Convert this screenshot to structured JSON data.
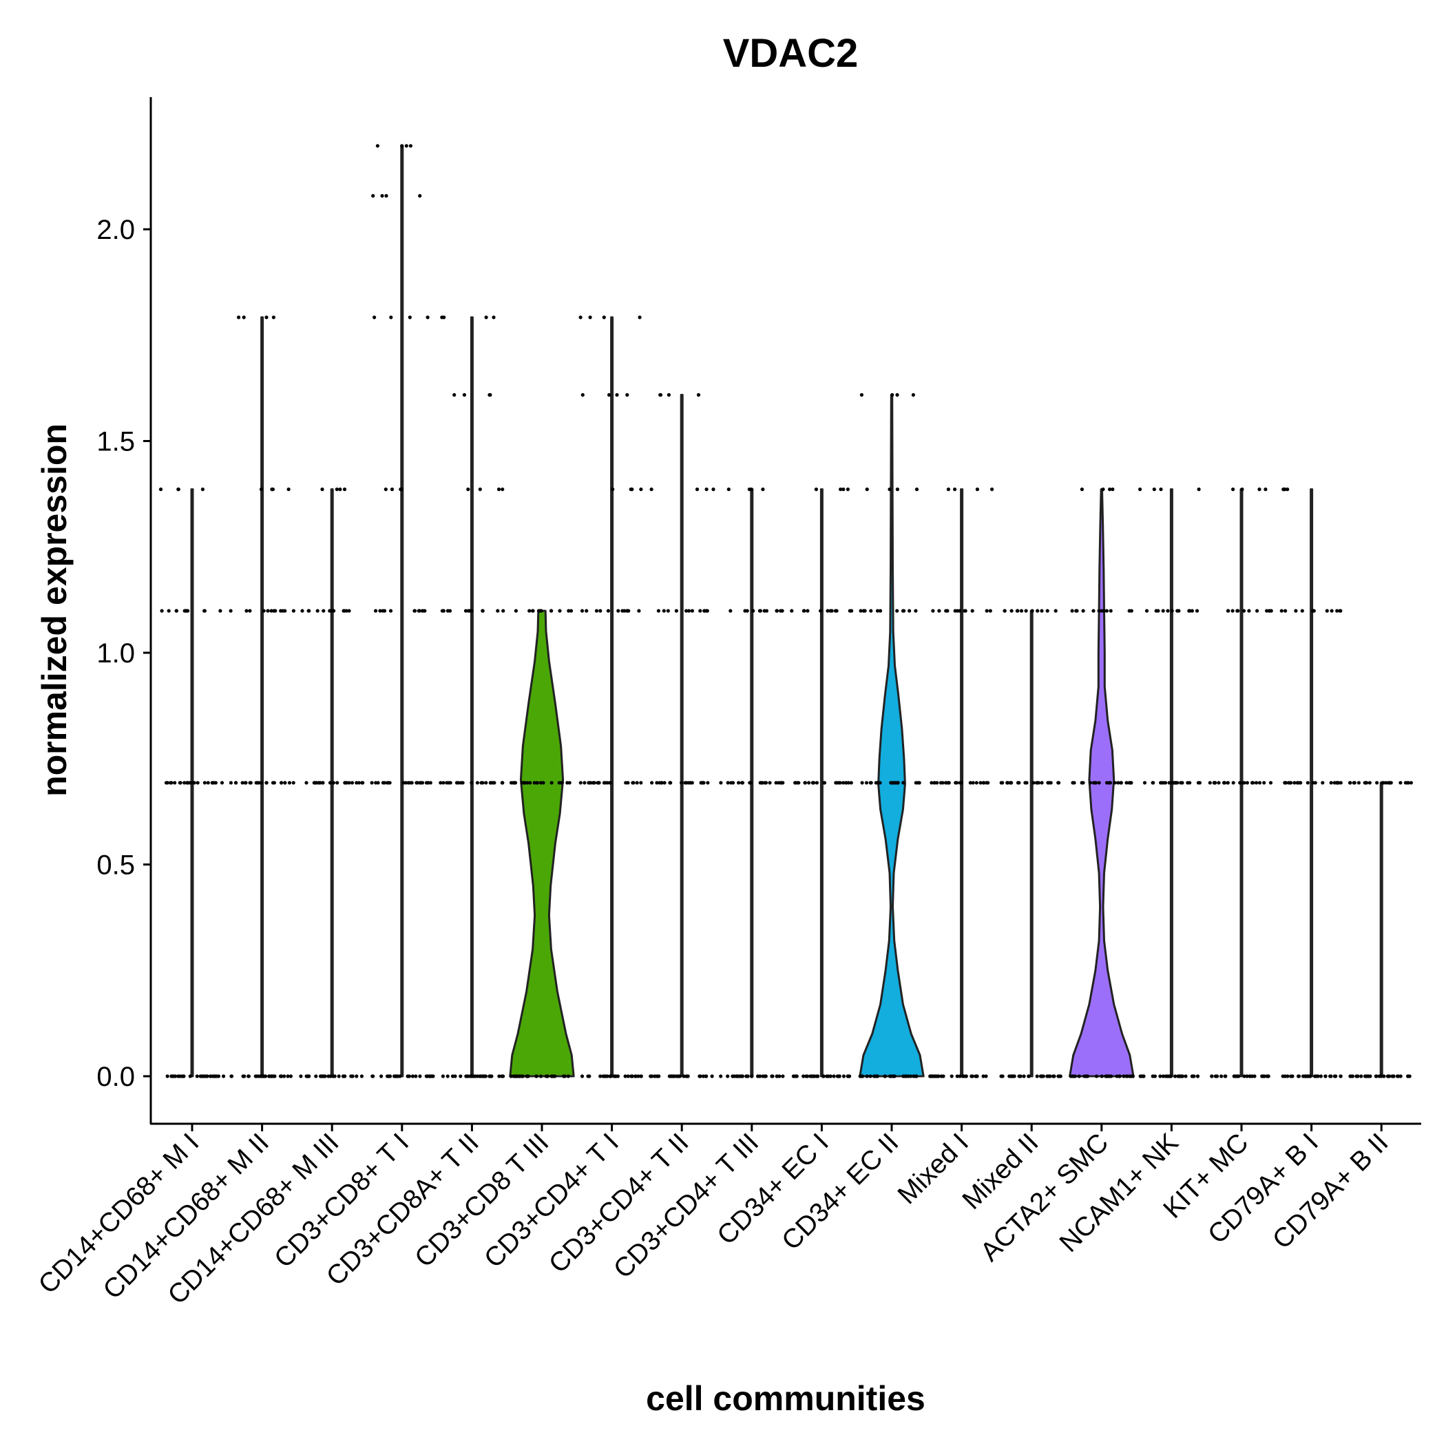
{
  "chart_data": {
    "type": "violin",
    "title": "VDAC2",
    "xlabel": "cell communities",
    "ylabel": "normalized expression",
    "ylim": [
      -0.11,
      2.32
    ],
    "yticks": [
      "0.0",
      "0.5",
      "1.0",
      "1.5",
      "2.0"
    ],
    "grid": false,
    "legend": "none",
    "categories": [
      "CD14+CD68+ M I",
      "CD14+CD68+ M II",
      "CD14+CD68+ M III",
      "CD3+CD8+ T I",
      "CD3+CD8A+ T II",
      "CD3+CD8 T III",
      "CD3+CD4+ T I",
      "CD3+CD4+ T II",
      "CD3+CD4+ T III",
      "CD34+ EC I",
      "CD34+ EC II",
      "Mixed I",
      "Mixed II",
      "ACTA2+ SMC",
      "NCAM1+ NK",
      "KIT+ MC",
      "CD79A+ B I",
      "CD79A+ B II"
    ],
    "series": [
      {
        "category": "CD14+CD68+ M I",
        "max": 1.386,
        "levels": [
          0.0,
          0.693,
          1.099,
          1.386
        ],
        "fill": "#F8766D"
      },
      {
        "category": "CD14+CD68+ M II",
        "max": 1.792,
        "levels": [
          0.0,
          0.693,
          1.099,
          1.386,
          1.792
        ],
        "fill": "#E7851E"
      },
      {
        "category": "CD14+CD68+ M III",
        "max": 1.386,
        "levels": [
          0.0,
          0.693,
          1.099,
          1.386
        ],
        "fill": "#D09400"
      },
      {
        "category": "CD3+CD8+ T I",
        "max": 2.197,
        "levels": [
          0.0,
          0.693,
          1.099,
          1.386,
          1.792,
          2.079,
          2.197
        ],
        "fill": "#B2A100"
      },
      {
        "category": "CD3+CD8A+ T II",
        "max": 1.792,
        "levels": [
          0.0,
          0.693,
          1.099,
          1.386,
          1.609,
          1.792
        ],
        "fill": "#89AC00"
      },
      {
        "category": "CD3+CD8 T III",
        "max": 1.099,
        "levels": [
          0.0,
          0.693,
          1.099
        ],
        "fill": "#4BA706",
        "density": [
          [
            0.0,
            0.62
          ],
          [
            0.05,
            0.58
          ],
          [
            0.1,
            0.47
          ],
          [
            0.2,
            0.3
          ],
          [
            0.3,
            0.18
          ],
          [
            0.38,
            0.14
          ],
          [
            0.45,
            0.17
          ],
          [
            0.55,
            0.26
          ],
          [
            0.62,
            0.35
          ],
          [
            0.7,
            0.41
          ],
          [
            0.78,
            0.37
          ],
          [
            0.88,
            0.26
          ],
          [
            0.98,
            0.14
          ],
          [
            1.05,
            0.08
          ],
          [
            1.099,
            0.07
          ]
        ]
      },
      {
        "category": "CD3+CD4+ T I",
        "max": 1.792,
        "levels": [
          0.0,
          0.693,
          1.099,
          1.386,
          1.609,
          1.792
        ],
        "fill": "#00C08B"
      },
      {
        "category": "CD3+CD4+ T II",
        "max": 1.609,
        "levels": [
          0.0,
          0.693,
          1.099,
          1.386,
          1.609
        ],
        "fill": "#00BFC4"
      },
      {
        "category": "CD3+CD4+ T III",
        "max": 1.386,
        "levels": [
          0.0,
          0.693,
          1.099,
          1.386
        ],
        "fill": "#00B4F0"
      },
      {
        "category": "CD34+ EC I",
        "max": 1.386,
        "levels": [
          0.0,
          0.693,
          1.099,
          1.386
        ],
        "fill": "#00A9FF"
      },
      {
        "category": "CD34+ EC II",
        "max": 1.609,
        "levels": [
          0.0,
          0.693,
          1.099,
          1.386,
          1.609
        ],
        "fill": "#13ADDE",
        "density": [
          [
            0.0,
            0.62
          ],
          [
            0.05,
            0.55
          ],
          [
            0.1,
            0.38
          ],
          [
            0.17,
            0.22
          ],
          [
            0.25,
            0.12
          ],
          [
            0.32,
            0.05
          ],
          [
            0.4,
            0.02
          ],
          [
            0.48,
            0.04
          ],
          [
            0.56,
            0.12
          ],
          [
            0.63,
            0.22
          ],
          [
            0.69,
            0.26
          ],
          [
            0.75,
            0.24
          ],
          [
            0.82,
            0.2
          ],
          [
            0.9,
            0.13
          ],
          [
            0.97,
            0.06
          ],
          [
            1.05,
            0.03
          ],
          [
            1.2,
            0.02
          ],
          [
            1.4,
            0.015
          ],
          [
            1.609,
            0.01
          ]
        ]
      },
      {
        "category": "Mixed I",
        "max": 1.386,
        "levels": [
          0.0,
          0.693,
          1.099,
          1.386
        ],
        "fill": "#C77CFF"
      },
      {
        "category": "Mixed II",
        "max": 1.099,
        "levels": [
          0.0,
          0.693,
          1.099
        ],
        "fill": "#E76BF3"
      },
      {
        "category": "ACTA2+ SMC",
        "max": 1.386,
        "levels": [
          0.0,
          0.693,
          1.099,
          1.386
        ],
        "fill": "#9C6FFA",
        "density": [
          [
            0.0,
            0.62
          ],
          [
            0.05,
            0.55
          ],
          [
            0.1,
            0.4
          ],
          [
            0.17,
            0.24
          ],
          [
            0.25,
            0.12
          ],
          [
            0.32,
            0.05
          ],
          [
            0.4,
            0.03
          ],
          [
            0.48,
            0.05
          ],
          [
            0.56,
            0.12
          ],
          [
            0.63,
            0.2
          ],
          [
            0.7,
            0.24
          ],
          [
            0.77,
            0.21
          ],
          [
            0.84,
            0.12
          ],
          [
            0.92,
            0.06
          ],
          [
            1.0,
            0.06
          ],
          [
            1.1,
            0.05
          ],
          [
            1.2,
            0.04
          ],
          [
            1.3,
            0.025
          ],
          [
            1.386,
            0.01
          ]
        ]
      },
      {
        "category": "NCAM1+ NK",
        "max": 1.386,
        "levels": [
          0.0,
          0.693,
          1.099,
          1.386
        ],
        "fill": "#FD61D1"
      },
      {
        "category": "KIT+ MC",
        "max": 1.386,
        "levels": [
          0.0,
          0.693,
          1.099,
          1.386
        ],
        "fill": "#FF67A4"
      },
      {
        "category": "CD79A+ B I",
        "max": 1.386,
        "levels": [
          0.0,
          0.693,
          1.099,
          1.386
        ],
        "fill": "#FF6C91"
      },
      {
        "category": "CD79A+ B II",
        "max": 0.693,
        "levels": [
          0.0,
          0.693
        ],
        "fill": "#F8766D"
      }
    ]
  }
}
